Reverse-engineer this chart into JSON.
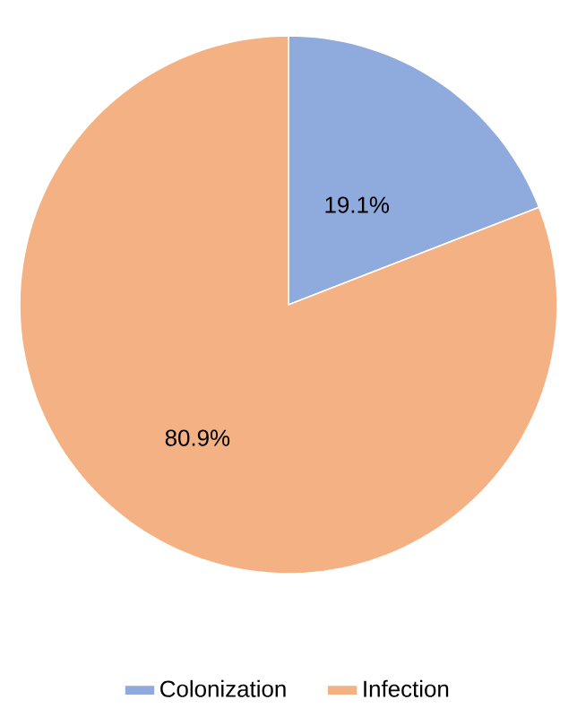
{
  "chart_data": {
    "type": "pie",
    "categories": [
      "Colonization",
      "Infection"
    ],
    "values": [
      19.1,
      80.9
    ],
    "colors": [
      "#8faadc",
      "#f4b183"
    ],
    "value_labels": [
      "19.1%",
      "80.9%"
    ],
    "legend": "bottom"
  }
}
